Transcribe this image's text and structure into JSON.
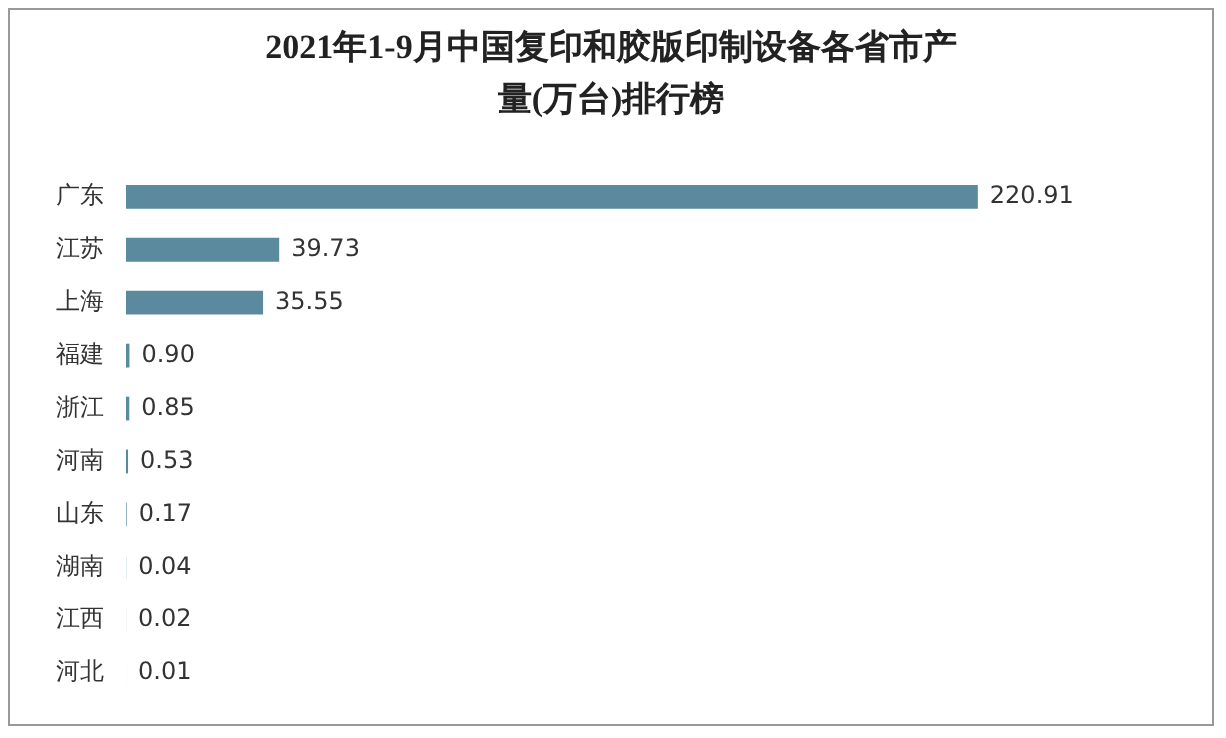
{
  "chart_data": {
    "type": "bar",
    "orientation": "horizontal",
    "title": "2021年1-9月中国复印和胶版印制设备各省市产量(万台)排行榜",
    "categories": [
      "广东",
      "江苏",
      "上海",
      "福建",
      "浙江",
      "河南",
      "山东",
      "湖南",
      "江西",
      "河北"
    ],
    "values": [
      220.91,
      39.73,
      35.55,
      0.9,
      0.85,
      0.53,
      0.17,
      0.04,
      0.02,
      0.01
    ],
    "value_labels": [
      "220.91",
      "39.73",
      "35.55",
      "0.90",
      "0.85",
      "0.53",
      "0.17",
      "0.04",
      "0.02",
      "0.01"
    ],
    "color": "#5b8a9e",
    "legend": false
  }
}
